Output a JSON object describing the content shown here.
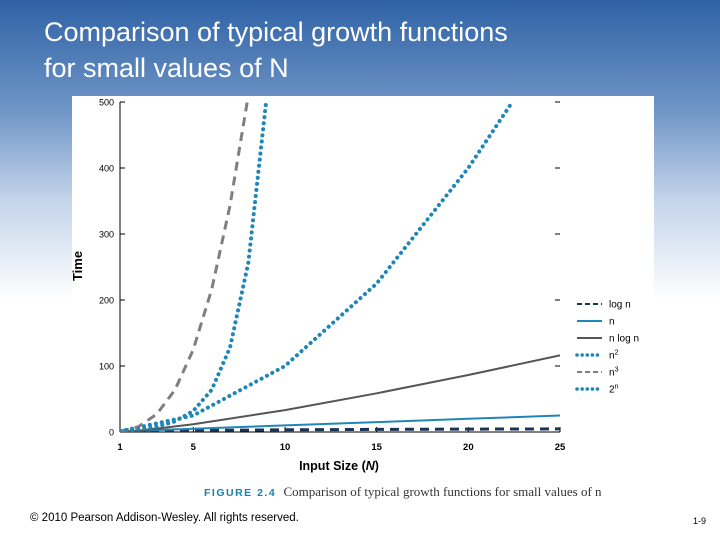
{
  "slide": {
    "title_line1": "Comparison of typical growth functions",
    "title_line2": "for small values of N",
    "copyright": "© 2010 Pearson Addison-Wesley. All rights reserved.",
    "page_number": "1-9"
  },
  "caption": {
    "label": "FIGURE 2.4",
    "text": "Comparison of typical growth functions for small values of n"
  },
  "colors": {
    "blue": "#1f86b8",
    "dark_gray": "#555555",
    "mid_gray": "#7f7f7f",
    "navy": "#1c3355"
  },
  "chart_data": {
    "type": "line",
    "title": "",
    "xlabel": "Input Size (N)",
    "xlabel_main": "Input Size (",
    "xlabel_var": "N",
    "xlabel_end": ")",
    "ylabel": "Time",
    "xlim": [
      1,
      25
    ],
    "ylim": [
      0,
      500
    ],
    "x_ticks": [
      1,
      5,
      10,
      15,
      20,
      25
    ],
    "y_ticks": [
      0,
      100,
      200,
      300,
      400,
      500
    ],
    "legend_position": "right",
    "series": [
      {
        "name": "log n",
        "label": "log n",
        "sup": "",
        "style": "dashed",
        "color": "#1c3355",
        "x": [
          1,
          2,
          5,
          10,
          15,
          20,
          25
        ],
        "values": [
          0,
          1,
          2.32,
          3.32,
          3.91,
          4.32,
          4.64
        ]
      },
      {
        "name": "n",
        "label": "n",
        "sup": "",
        "style": "solid",
        "color": "#1f86b8",
        "x": [
          1,
          5,
          10,
          15,
          20,
          25
        ],
        "values": [
          1,
          5,
          10,
          15,
          20,
          25
        ]
      },
      {
        "name": "n log n",
        "label": "n log n",
        "sup": "",
        "style": "solid",
        "color": "#555555",
        "x": [
          1,
          2,
          5,
          10,
          15,
          20,
          25
        ],
        "values": [
          0,
          2,
          11.6,
          33.2,
          58.6,
          86.4,
          116.1
        ]
      },
      {
        "name": "n^2",
        "label": "n",
        "sup": "2",
        "style": "dotted",
        "color": "#1f86b8",
        "x": [
          1,
          5,
          10,
          15,
          20,
          22.4
        ],
        "values": [
          1,
          25,
          100,
          225,
          400,
          500
        ]
      },
      {
        "name": "n^3",
        "label": "n",
        "sup": "3",
        "style": "dashed",
        "color": "#7f7f7f",
        "x": [
          1,
          2,
          3,
          4,
          5,
          6,
          7,
          7.94
        ],
        "values": [
          1,
          8,
          27,
          64,
          125,
          216,
          343,
          500
        ]
      },
      {
        "name": "2^n",
        "label": "2",
        "sup": "n",
        "style": "dotted",
        "color": "#1f86b8",
        "x": [
          1,
          2,
          3,
          4,
          5,
          6,
          7,
          8,
          8.97
        ],
        "values": [
          2,
          4,
          8,
          16,
          32,
          64,
          128,
          256,
          500
        ]
      }
    ]
  }
}
